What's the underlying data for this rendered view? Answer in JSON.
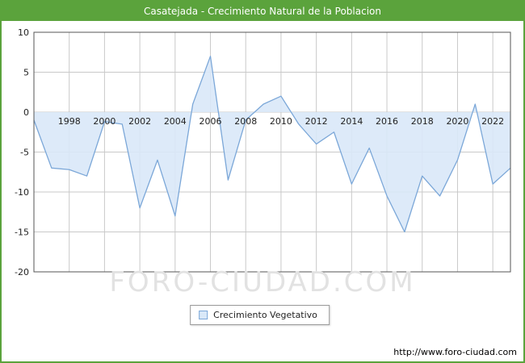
{
  "window": {
    "title": "Casatejada - Crecimiento Natural de la Poblacion"
  },
  "chart_data": {
    "type": "area",
    "title": "Casatejada - Crecimiento Natural de la Poblacion",
    "x": [
      1996,
      1997,
      1998,
      1999,
      2000,
      2001,
      2002,
      2003,
      2004,
      2005,
      2006,
      2007,
      2008,
      2009,
      2010,
      2011,
      2012,
      2013,
      2014,
      2015,
      2016,
      2017,
      2018,
      2019,
      2020,
      2021,
      2022,
      2023
    ],
    "values": [
      -1,
      -7,
      -7.2,
      -8,
      -1.2,
      -1.5,
      -12,
      -6,
      -13,
      1,
      7,
      -8.5,
      -1,
      1,
      2,
      -1.5,
      -4,
      -2.5,
      -9,
      -4.5,
      -10.5,
      -15,
      -8,
      -10.5,
      -6,
      1,
      -9,
      -7
    ],
    "series_name": "Crecimiento Vegetativo",
    "xticks": [
      1998,
      2000,
      2002,
      2004,
      2006,
      2008,
      2010,
      2012,
      2014,
      2016,
      2018,
      2020,
      2022
    ],
    "yticks": [
      10,
      5,
      0,
      -5,
      -10,
      -15,
      -20
    ],
    "ylim": [
      -20,
      10
    ],
    "xlim": [
      1996,
      2023
    ],
    "grid": true,
    "legend_position": "bottom-center",
    "xlabel": "",
    "ylabel": ""
  },
  "legend": {
    "label": "Crecimiento Vegetativo"
  },
  "watermark": "FORO-CIUDAD.COM",
  "footer": {
    "link": "http://www.foro-ciudad.com"
  },
  "colors": {
    "title_bg": "#5ba33c",
    "line": "#7ba7d8",
    "fill": "#d9e8f8",
    "grid": "#c9c9c9",
    "plot_border": "#555555",
    "tick_text": "#222222"
  }
}
